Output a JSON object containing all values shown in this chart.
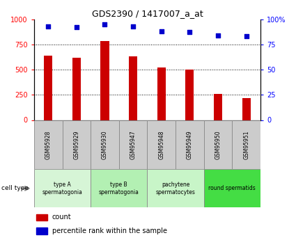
{
  "title": "GDS2390 / 1417007_a_at",
  "samples": [
    "GSM95928",
    "GSM95929",
    "GSM95930",
    "GSM95947",
    "GSM95948",
    "GSM95949",
    "GSM95950",
    "GSM95951"
  ],
  "counts": [
    635,
    620,
    780,
    630,
    520,
    500,
    260,
    220
  ],
  "percentiles": [
    93,
    92,
    95,
    93,
    88,
    87,
    84,
    83
  ],
  "bar_color": "#cc0000",
  "dot_color": "#0000cc",
  "ylim_left": [
    0,
    1000
  ],
  "ylim_right": [
    0,
    100
  ],
  "yticks_left": [
    0,
    250,
    500,
    750,
    1000
  ],
  "yticks_right": [
    0,
    25,
    50,
    75,
    100
  ],
  "ytick_right_labels": [
    "0",
    "25",
    "50",
    "75",
    "100%"
  ],
  "cell_type_groups": [
    {
      "label": "type A\nspermatogonia",
      "color": "#d6f5d6",
      "span": [
        0,
        2
      ]
    },
    {
      "label": "type B\nspermatogonia",
      "color": "#b3f0b3",
      "span": [
        2,
        4
      ]
    },
    {
      "label": "pachytene\nspermatocytes",
      "color": "#c8f5c8",
      "span": [
        4,
        6
      ]
    },
    {
      "label": "round spermatids",
      "color": "#44dd44",
      "span": [
        6,
        8
      ]
    }
  ],
  "legend_count_label": "count",
  "legend_pct_label": "percentile rank within the sample",
  "cell_type_label": "cell type"
}
